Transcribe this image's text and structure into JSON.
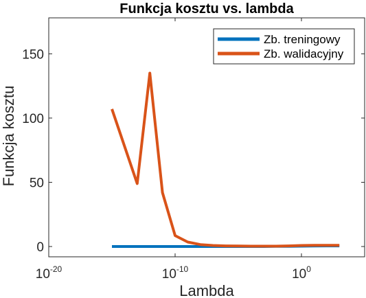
{
  "chart_data": {
    "type": "line",
    "title": "Funkcja kosztu vs. lambda",
    "xlabel": "Lambda",
    "ylabel": "Funkcja kosztu",
    "xscale": "log",
    "xlim": [
      1e-20,
      100000.0
    ],
    "ylim": [
      -8,
      178
    ],
    "grid": false,
    "legend_position": "top-right",
    "xticks": [
      {
        "base": "10",
        "exp": "-20",
        "value": 1e-20
      },
      {
        "base": "10",
        "exp": "-10",
        "value": 1e-10
      },
      {
        "base": "10",
        "exp": "0",
        "value": 1
      }
    ],
    "yticks": [
      0,
      50,
      100,
      150
    ],
    "series": [
      {
        "name": "Zb. treningowy",
        "color": "#0072BD",
        "x": [
          1e-15,
          1e-13,
          1e-11,
          1e-10,
          1e-09,
          1e-08,
          1e-07,
          1e-06,
          1e-05,
          0.0001,
          0.001,
          0.01,
          0.1,
          1,
          10,
          100,
          1000
        ],
        "y": [
          0,
          0,
          0,
          0,
          0,
          0,
          0,
          0,
          0,
          0,
          0,
          0.1,
          0.2,
          0.3,
          0.4,
          0.5,
          0.5
        ]
      },
      {
        "name": "Zb. walidacyjny",
        "color": "#D95319",
        "x": [
          1e-15,
          1e-13,
          1e-12,
          1e-11,
          1e-10,
          1e-09,
          1e-08,
          1e-07,
          1e-06,
          1e-05,
          0.0001,
          0.001,
          0.01,
          0.1,
          1,
          10,
          100,
          1000
        ],
        "y": [
          107,
          49,
          135,
          42,
          8.5,
          3.5,
          1.5,
          0.8,
          0.5,
          0.4,
          0.3,
          0.3,
          0.3,
          0.5,
          0.8,
          1,
          1,
          1
        ]
      }
    ]
  }
}
